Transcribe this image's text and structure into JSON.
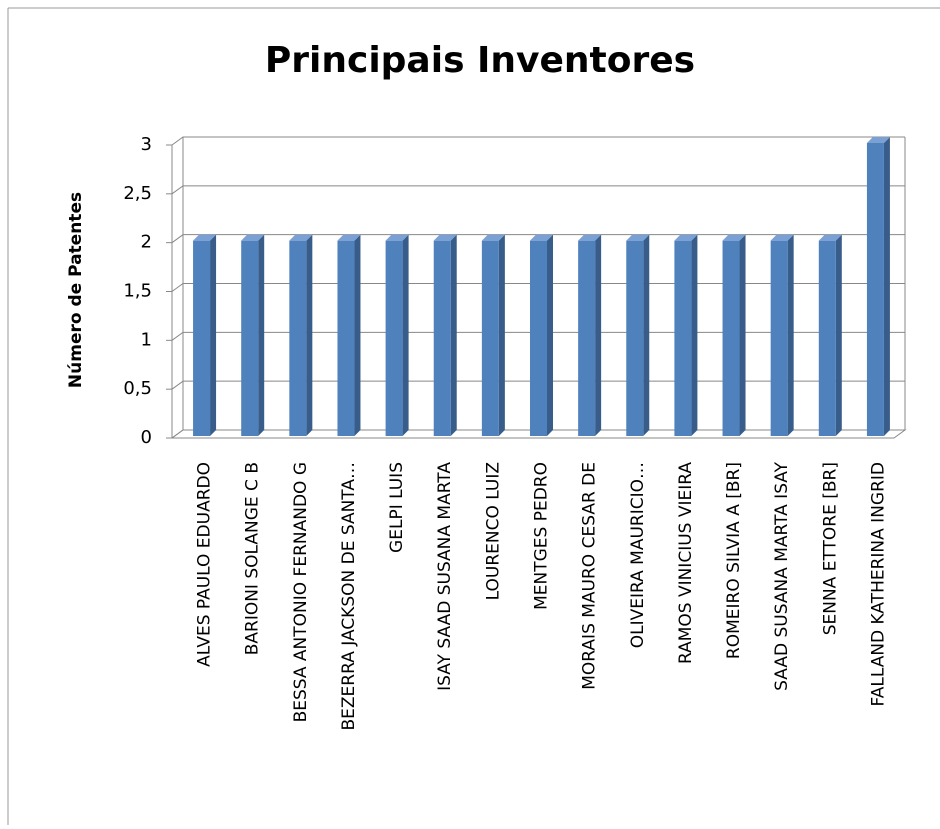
{
  "chart_data": {
    "type": "bar3d",
    "title": "Principais Inventores",
    "ylabel": "Número de Patentes",
    "categories": [
      "ALVES PAULO EDUARDO",
      "BARIONI SOLANGE C B",
      "BESSA ANTONIO FERNANDO G",
      "BEZERRA JACKSON DE SANTA…",
      "GELPI LUIS",
      "ISAY SAAD SUSANA MARTA",
      "LOURENCO LUIZ",
      "MENTGES PEDRO",
      "MORAIS MAURO CESAR DE",
      "OLIVEIRA MAURICIO…",
      "RAMOS VINICIUS VIEIRA",
      "ROMEIRO SILVIA A [BR]",
      "SAAD SUSANA MARTA ISAY",
      "SENNA ETTORE [BR]",
      "FALLAND KATHERINA INGRID"
    ],
    "values": [
      2,
      2,
      2,
      2,
      2,
      2,
      2,
      2,
      2,
      2,
      2,
      2,
      2,
      2,
      3
    ],
    "color": "#4f81bd",
    "ylim": [
      0,
      3
    ],
    "yticks": [
      0,
      {
        "value": 0.5,
        "label": "0,5"
      },
      1,
      {
        "value": 1.5,
        "label": "1,5"
      },
      2,
      {
        "value": 2.5,
        "label": "2,5"
      },
      3
    ],
    "grid": true
  }
}
